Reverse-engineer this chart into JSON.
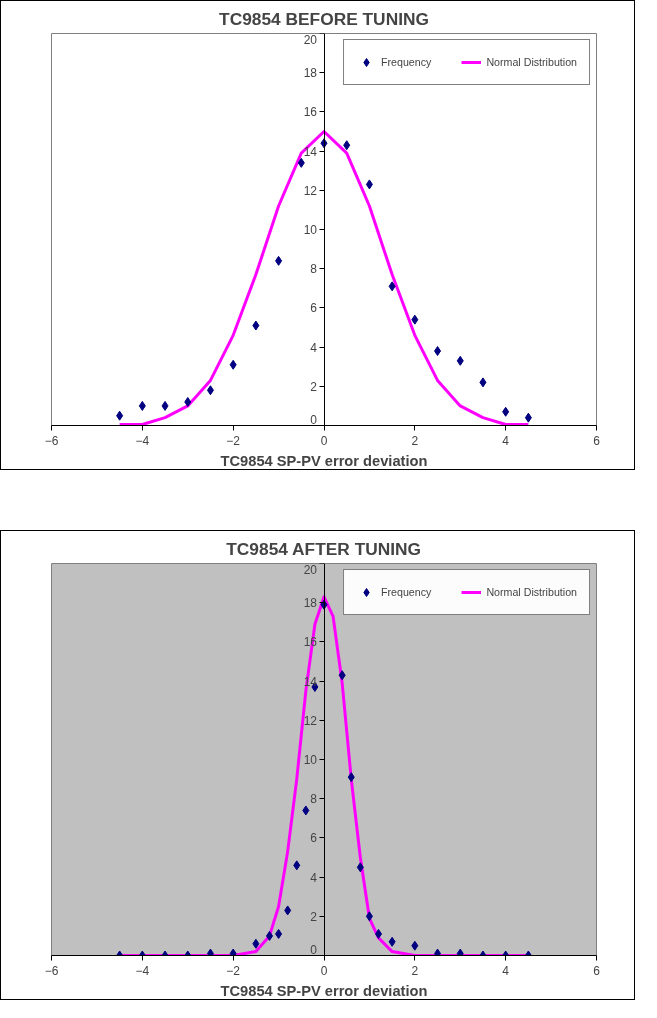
{
  "chart_data": [
    {
      "type": "scatter",
      "title": "TC9854 BEFORE TUNING",
      "xlabel": "TC9854 SP-PV error deviation",
      "xlim": [
        -6,
        6
      ],
      "xticks": [
        -6,
        -4,
        -2,
        0,
        2,
        4,
        6
      ],
      "ylim": [
        0,
        20
      ],
      "yticks": [
        0,
        2,
        4,
        6,
        8,
        10,
        12,
        14,
        16,
        18,
        20
      ],
      "grid": false,
      "legend": "top right",
      "series": [
        {
          "name": "Frequency",
          "marker": "diamond",
          "color": "#000080",
          "x": [
            -4.5,
            -4,
            -3.5,
            -3,
            -2.5,
            -2,
            -1.5,
            -1,
            -0.5,
            0,
            0.5,
            1,
            1.5,
            2,
            2.5,
            3,
            3.5,
            4,
            4.5
          ],
          "values": [
            0.5,
            1.0,
            1.0,
            1.2,
            1.8,
            3.1,
            5.1,
            8.4,
            13.4,
            14.4,
            14.3,
            12.3,
            7.1,
            5.4,
            3.8,
            3.3,
            2.2,
            0.7,
            0.4
          ]
        },
        {
          "name": "Normal Distribution",
          "type": "line",
          "color": "#ff00ff",
          "x": [
            -4.5,
            -4,
            -3.5,
            -3,
            -2.5,
            -2,
            -1.5,
            -1,
            -0.5,
            0,
            0.5,
            1,
            1.5,
            2,
            2.5,
            3,
            3.5,
            4,
            4.5
          ],
          "values": [
            0.05,
            0.05,
            0.4,
            1.0,
            2.3,
            4.6,
            7.7,
            11.2,
            13.9,
            15.0,
            13.9,
            11.2,
            7.7,
            4.6,
            2.3,
            1.0,
            0.4,
            0.05,
            0.05
          ]
        }
      ]
    },
    {
      "type": "scatter",
      "title": "TC9854 AFTER TUNING",
      "xlabel": "TC9854 SP-PV error deviation",
      "xlim": [
        -6,
        6
      ],
      "xticks": [
        -6,
        -4,
        -2,
        0,
        2,
        4,
        6
      ],
      "ylim": [
        0,
        20
      ],
      "yticks": [
        0,
        2,
        4,
        6,
        8,
        10,
        12,
        14,
        16,
        18,
        20
      ],
      "grid": false,
      "legend": "top right",
      "series": [
        {
          "name": "Frequency",
          "marker": "diamond",
          "color": "#000080",
          "x": [
            -4.5,
            -4,
            -3.5,
            -3,
            -2.5,
            -2,
            -1.5,
            -1.2,
            -1.0,
            -0.8,
            -0.6,
            -0.4,
            -0.2,
            0,
            0.4,
            0.6,
            0.8,
            1.0,
            1.2,
            1.5,
            2,
            2.5,
            3,
            3.5,
            4,
            4.5
          ],
          "values": [
            0,
            0,
            0,
            0,
            0.1,
            0.1,
            0.6,
            1.0,
            1.1,
            2.3,
            4.6,
            7.4,
            13.7,
            17.9,
            14.3,
            9.1,
            4.5,
            2.0,
            1.1,
            0.7,
            0.5,
            0.1,
            0.1,
            0,
            0,
            0
          ]
        },
        {
          "name": "Normal Distribution",
          "type": "line",
          "color": "#ff00ff",
          "x": [
            -4.5,
            -4,
            -3.5,
            -3,
            -2.5,
            -2,
            -1.5,
            -1.2,
            -1.0,
            -0.8,
            -0.6,
            -0.4,
            -0.2,
            0,
            0.2,
            0.4,
            0.6,
            0.8,
            1.0,
            1.2,
            1.5,
            2,
            2.5,
            3,
            3.5,
            4,
            4.5
          ],
          "values": [
            0,
            0,
            0,
            0,
            0,
            0,
            0.2,
            1.0,
            2.5,
            5.3,
            9.0,
            13.5,
            16.9,
            18.3,
            17.3,
            13.9,
            9.0,
            5.0,
            1.9,
            0.9,
            0.2,
            0,
            0,
            0,
            0,
            0,
            0
          ]
        }
      ]
    }
  ]
}
